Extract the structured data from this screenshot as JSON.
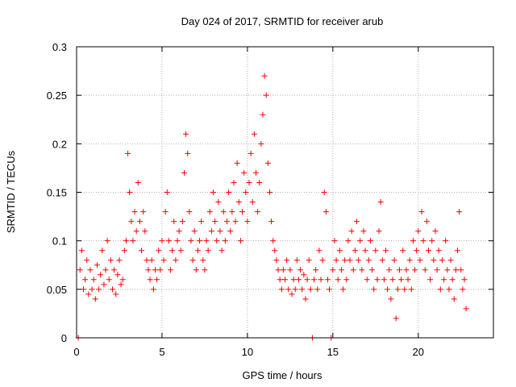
{
  "chart_data": {
    "type": "scatter",
    "title": "Day 024 of 2017, SRMTID for receiver arub",
    "xlabel": "GPS time / hours",
    "ylabel": "SRMTID / TECUs",
    "xlim": [
      0,
      24.4
    ],
    "ylim": [
      0,
      0.3
    ],
    "grid": true,
    "marker": "+",
    "xticks": [
      0,
      5,
      10,
      15,
      20
    ],
    "xtick_labels": [
      "0",
      "5",
      "10",
      "15",
      "20"
    ],
    "yticks": [
      0,
      0.05,
      0.1,
      0.15,
      0.2,
      0.25,
      0.3
    ],
    "ytick_labels": [
      "0",
      "0.05",
      "0.1",
      "0.15",
      "0.2",
      "0.25",
      "0.3"
    ],
    "color": "#ff0000",
    "series": [
      {
        "name": "SRMTID",
        "points": [
          [
            0.1,
            0.0
          ],
          [
            0.2,
            0.07
          ],
          [
            0.3,
            0.09
          ],
          [
            0.4,
            0.05
          ],
          [
            0.5,
            0.06
          ],
          [
            0.6,
            0.08
          ],
          [
            0.7,
            0.045
          ],
          [
            0.8,
            0.07
          ],
          [
            0.9,
            0.05
          ],
          [
            1.0,
            0.06
          ],
          [
            1.1,
            0.04
          ],
          [
            1.2,
            0.075
          ],
          [
            1.3,
            0.05
          ],
          [
            1.4,
            0.065
          ],
          [
            1.5,
            0.09
          ],
          [
            1.6,
            0.055
          ],
          [
            1.7,
            0.07
          ],
          [
            1.8,
            0.1
          ],
          [
            1.9,
            0.06
          ],
          [
            2.0,
            0.08
          ],
          [
            2.1,
            0.05
          ],
          [
            2.2,
            0.07
          ],
          [
            2.3,
            0.045
          ],
          [
            2.4,
            0.065
          ],
          [
            2.5,
            0.08
          ],
          [
            2.6,
            0.055
          ],
          [
            2.7,
            0.06
          ],
          [
            2.8,
            0.09
          ],
          [
            2.9,
            0.1
          ],
          [
            3.0,
            0.19
          ],
          [
            3.1,
            0.15
          ],
          [
            3.2,
            0.12
          ],
          [
            3.3,
            0.1
          ],
          [
            3.4,
            0.13
          ],
          [
            3.5,
            0.11
          ],
          [
            3.6,
            0.16
          ],
          [
            3.7,
            0.12
          ],
          [
            3.8,
            0.09
          ],
          [
            3.9,
            0.13
          ],
          [
            4.0,
            0.11
          ],
          [
            4.1,
            0.08
          ],
          [
            4.2,
            0.07
          ],
          [
            4.3,
            0.06
          ],
          [
            4.4,
            0.08
          ],
          [
            4.5,
            0.05
          ],
          [
            4.6,
            0.07
          ],
          [
            4.7,
            0.06
          ],
          [
            4.8,
            0.09
          ],
          [
            4.9,
            0.07
          ],
          [
            5.0,
            0.1
          ],
          [
            5.1,
            0.08
          ],
          [
            5.2,
            0.13
          ],
          [
            5.3,
            0.15
          ],
          [
            5.4,
            0.1
          ],
          [
            5.5,
            0.07
          ],
          [
            5.6,
            0.09
          ],
          [
            5.7,
            0.12
          ],
          [
            5.8,
            0.08
          ],
          [
            5.9,
            0.1
          ],
          [
            6.0,
            0.11
          ],
          [
            6.1,
            0.09
          ],
          [
            6.2,
            0.12
          ],
          [
            6.3,
            0.17
          ],
          [
            6.4,
            0.21
          ],
          [
            6.5,
            0.19
          ],
          [
            6.6,
            0.13
          ],
          [
            6.7,
            0.1
          ],
          [
            6.8,
            0.08
          ],
          [
            6.9,
            0.11
          ],
          [
            7.0,
            0.07
          ],
          [
            7.1,
            0.09
          ],
          [
            7.2,
            0.1
          ],
          [
            7.3,
            0.12
          ],
          [
            7.4,
            0.08
          ],
          [
            7.5,
            0.07
          ],
          [
            7.6,
            0.1
          ],
          [
            7.7,
            0.09
          ],
          [
            7.8,
            0.13
          ],
          [
            7.9,
            0.11
          ],
          [
            8.0,
            0.15
          ],
          [
            8.1,
            0.12
          ],
          [
            8.2,
            0.1
          ],
          [
            8.3,
            0.14
          ],
          [
            8.4,
            0.11
          ],
          [
            8.5,
            0.09
          ],
          [
            8.6,
            0.13
          ],
          [
            8.7,
            0.1
          ],
          [
            8.8,
            0.12
          ],
          [
            8.9,
            0.15
          ],
          [
            9.0,
            0.11
          ],
          [
            9.1,
            0.13
          ],
          [
            9.2,
            0.16
          ],
          [
            9.3,
            0.12
          ],
          [
            9.4,
            0.18
          ],
          [
            9.5,
            0.14
          ],
          [
            9.6,
            0.1
          ],
          [
            9.7,
            0.13
          ],
          [
            9.8,
            0.17
          ],
          [
            9.9,
            0.15
          ],
          [
            10.0,
            0.12
          ],
          [
            10.1,
            0.16
          ],
          [
            10.2,
            0.19
          ],
          [
            10.3,
            0.14
          ],
          [
            10.4,
            0.21
          ],
          [
            10.5,
            0.17
          ],
          [
            10.6,
            0.13
          ],
          [
            10.7,
            0.16
          ],
          [
            10.8,
            0.2
          ],
          [
            10.9,
            0.23
          ],
          [
            11.0,
            0.27
          ],
          [
            11.1,
            0.25
          ],
          [
            11.2,
            0.18
          ],
          [
            11.3,
            0.15
          ],
          [
            11.4,
            0.12
          ],
          [
            11.5,
            0.1
          ],
          [
            11.6,
            0.09
          ],
          [
            11.7,
            0.08
          ],
          [
            11.8,
            0.07
          ],
          [
            11.9,
            0.06
          ],
          [
            12.0,
            0.05
          ],
          [
            12.1,
            0.07
          ],
          [
            12.2,
            0.06
          ],
          [
            12.3,
            0.08
          ],
          [
            12.4,
            0.05
          ],
          [
            12.5,
            0.07
          ],
          [
            12.6,
            0.045
          ],
          [
            12.7,
            0.06
          ],
          [
            12.8,
            0.05
          ],
          [
            12.9,
            0.08
          ],
          [
            13.0,
            0.06
          ],
          [
            13.1,
            0.07
          ],
          [
            13.2,
            0.05
          ],
          [
            13.3,
            0.065
          ],
          [
            13.4,
            0.04
          ],
          [
            13.5,
            0.06
          ],
          [
            13.6,
            0.08
          ],
          [
            13.7,
            0.05
          ],
          [
            13.8,
            0.0
          ],
          [
            13.9,
            0.06
          ],
          [
            14.0,
            0.07
          ],
          [
            14.1,
            0.05
          ],
          [
            14.2,
            0.09
          ],
          [
            14.3,
            0.06
          ],
          [
            14.4,
            0.08
          ],
          [
            14.5,
            0.15
          ],
          [
            14.6,
            0.13
          ],
          [
            14.7,
            0.06
          ],
          [
            14.8,
            0.05
          ],
          [
            14.9,
            0.0
          ],
          [
            15.0,
            0.07
          ],
          [
            15.1,
            0.1
          ],
          [
            15.2,
            0.08
          ],
          [
            15.3,
            0.06
          ],
          [
            15.4,
            0.09
          ],
          [
            15.5,
            0.07
          ],
          [
            15.6,
            0.05
          ],
          [
            15.7,
            0.08
          ],
          [
            15.8,
            0.06
          ],
          [
            15.9,
            0.1
          ],
          [
            16.0,
            0.08
          ],
          [
            16.1,
            0.11
          ],
          [
            16.2,
            0.07
          ],
          [
            16.3,
            0.09
          ],
          [
            16.4,
            0.12
          ],
          [
            16.5,
            0.08
          ],
          [
            16.6,
            0.1
          ],
          [
            16.7,
            0.07
          ],
          [
            16.8,
            0.11
          ],
          [
            16.9,
            0.09
          ],
          [
            17.0,
            0.06
          ],
          [
            17.1,
            0.08
          ],
          [
            17.2,
            0.1
          ],
          [
            17.3,
            0.07
          ],
          [
            17.4,
            0.05
          ],
          [
            17.5,
            0.09
          ],
          [
            17.6,
            0.06
          ],
          [
            17.7,
            0.11
          ],
          [
            17.8,
            0.14
          ],
          [
            17.9,
            0.08
          ],
          [
            18.0,
            0.06
          ],
          [
            18.1,
            0.09
          ],
          [
            18.2,
            0.05
          ],
          [
            18.3,
            0.07
          ],
          [
            18.4,
            0.04
          ],
          [
            18.5,
            0.06
          ],
          [
            18.6,
            0.08
          ],
          [
            18.7,
            0.02
          ],
          [
            18.8,
            0.05
          ],
          [
            18.9,
            0.07
          ],
          [
            19.0,
            0.06
          ],
          [
            19.1,
            0.09
          ],
          [
            19.2,
            0.05
          ],
          [
            19.3,
            0.07
          ],
          [
            19.4,
            0.06
          ],
          [
            19.5,
            0.08
          ],
          [
            19.6,
            0.05
          ],
          [
            19.7,
            0.1
          ],
          [
            19.8,
            0.07
          ],
          [
            19.9,
            0.09
          ],
          [
            20.0,
            0.11
          ],
          [
            20.1,
            0.08
          ],
          [
            20.2,
            0.13
          ],
          [
            20.3,
            0.1
          ],
          [
            20.4,
            0.07
          ],
          [
            20.5,
            0.12
          ],
          [
            20.6,
            0.09
          ],
          [
            20.7,
            0.06
          ],
          [
            20.8,
            0.1
          ],
          [
            20.9,
            0.08
          ],
          [
            21.0,
            0.11
          ],
          [
            21.1,
            0.07
          ],
          [
            21.2,
            0.09
          ],
          [
            21.3,
            0.05
          ],
          [
            21.4,
            0.08
          ],
          [
            21.5,
            0.06
          ],
          [
            21.6,
            0.1
          ],
          [
            21.7,
            0.07
          ],
          [
            21.8,
            0.05
          ],
          [
            21.9,
            0.08
          ],
          [
            22.0,
            0.06
          ],
          [
            22.1,
            0.04
          ],
          [
            22.2,
            0.07
          ],
          [
            22.3,
            0.09
          ],
          [
            22.4,
            0.13
          ],
          [
            22.5,
            0.07
          ],
          [
            22.6,
            0.05
          ],
          [
            22.7,
            0.06
          ],
          [
            22.8,
            0.03
          ]
        ]
      }
    ]
  }
}
